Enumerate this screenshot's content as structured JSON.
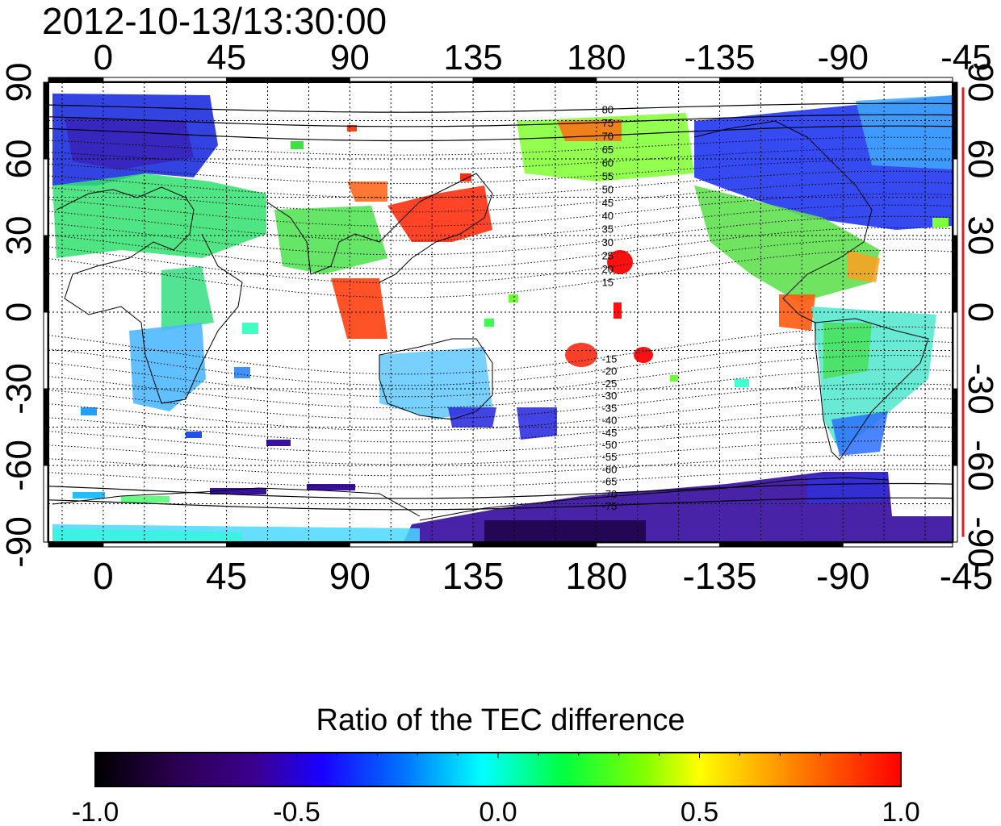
{
  "title": "2012-10-13/13:30:00",
  "map": {
    "projection": "cylindrical equidistant",
    "lon_range": [
      -20,
      310
    ],
    "lat_range": [
      -90,
      90
    ],
    "top_lon_ticks": [
      "0",
      "45",
      "90",
      "135",
      "180",
      "-135",
      "-90",
      "-45"
    ],
    "bottom_lon_ticks": [
      "0",
      "45",
      "90",
      "135",
      "180",
      "-135",
      "-90",
      "-45"
    ],
    "left_lat_ticks": [
      "90",
      "60",
      "30",
      "0",
      "-30",
      "-60",
      "-90"
    ],
    "right_lat_ticks": [
      "90",
      "60",
      "30",
      "0",
      "-30",
      "-60",
      "-90"
    ],
    "grid": true,
    "magnetic_latitude_labels": [
      "80",
      "75",
      "70",
      "65",
      "60",
      "55",
      "50",
      "45",
      "40",
      "35",
      "30",
      "25",
      "20",
      "15",
      "-15",
      "-20",
      "-25",
      "-30",
      "-35",
      "-40",
      "-45",
      "-50",
      "-55",
      "-60",
      "-65",
      "-70",
      "-75"
    ],
    "right_axis_marker_color": "#e41a1c"
  },
  "colorbar": {
    "title": "Ratio of the TEC difference",
    "min": -1.0,
    "max": 1.0,
    "tick_labels": [
      "-1.0",
      "-0.5",
      "0.0",
      "0.5",
      "1.0"
    ],
    "colormap": [
      "#000000",
      "#3b0080",
      "#1a00ff",
      "#0070ff",
      "#00ffff",
      "#00ff40",
      "#c0ff00",
      "#ffff00",
      "#ff8000",
      "#ff0000"
    ]
  }
}
